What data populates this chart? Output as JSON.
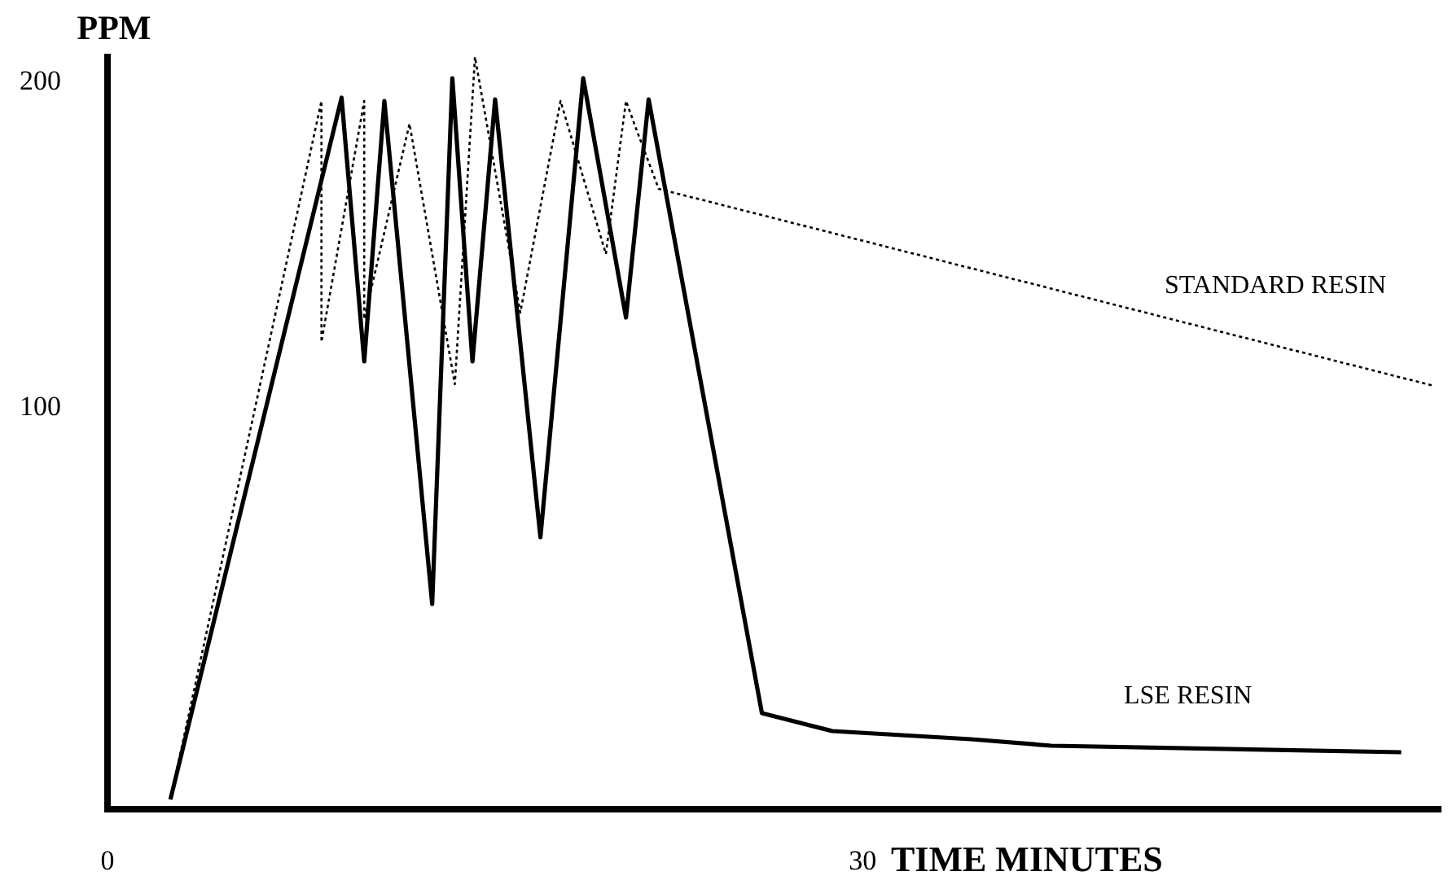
{
  "chart_data": {
    "type": "line",
    "xlabel": "TIME MINUTES",
    "ylabel": "PPM",
    "xlim": [
      0,
      53
    ],
    "ylim": [
      -24,
      208
    ],
    "xticks": [
      0,
      30
    ],
    "yticks": [
      100,
      200
    ],
    "grid": false,
    "marker": "none",
    "series": [
      {
        "name": "STANDARD RESIN",
        "color": "#000000",
        "line_style": "dotted",
        "x": [
          2.5,
          8.5,
          8.5,
          10.2,
          10.2,
          12.0,
          13.8,
          14.6,
          16.4,
          18.0,
          19.8,
          20.6,
          21.0,
          21.9,
          52.7
        ],
        "values": [
          -21,
          193.5,
          119.5,
          193.5,
          126.5,
          186.5,
          106.5,
          207,
          128.5,
          193.5,
          146.5,
          193.5,
          185,
          166.5,
          106
        ]
      },
      {
        "name": "LSE RESIN",
        "color": "#000000",
        "line_style": "solid",
        "x": [
          2.5,
          9.3,
          10.2,
          11.0,
          12.9,
          13.7,
          14.5,
          15.4,
          17.2,
          18.9,
          20.6,
          21.5,
          26.0,
          28.8,
          34.3,
          37.5,
          51.4
        ],
        "values": [
          -21,
          194.5,
          113.5,
          193.5,
          39,
          200.5,
          113.5,
          194,
          59.5,
          200.5,
          127,
          194,
          5.5,
          0,
          -2.5,
          -4.5,
          -6.5
        ]
      }
    ]
  }
}
